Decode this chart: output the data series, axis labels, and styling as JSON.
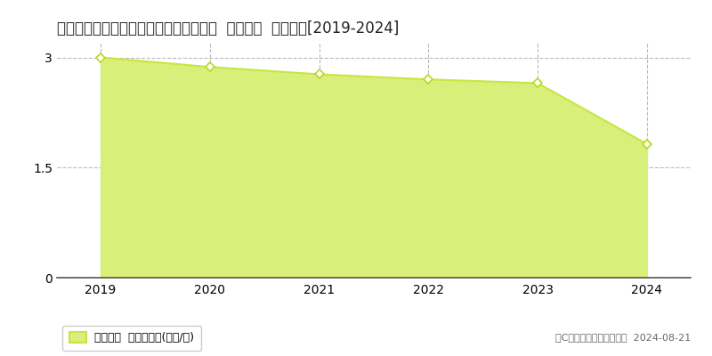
{
  "title": "兵庫県赤穂郡上郡町別名字北條６９番３  地価公示  地価推移[2019-2024]",
  "years": [
    2019,
    2020,
    2021,
    2022,
    2023,
    2024
  ],
  "values": [
    3.0,
    2.87,
    2.77,
    2.7,
    2.65,
    1.82
  ],
  "ylim": [
    0,
    3.2
  ],
  "yticks": [
    0,
    1.5,
    3
  ],
  "line_color": "#c8e640",
  "fill_color": "#d8ef7a",
  "marker_face_color": "#ffffff",
  "marker_edge_color": "#b8d820",
  "grid_color": "#aaaaaa",
  "background_color": "#ffffff",
  "legend_label": "地価公示  平均坪単価(万円/坪)",
  "copyright_text": "（C）土地価格ドットコム  2024-08-21",
  "title_fontsize": 12,
  "tick_fontsize": 10,
  "legend_fontsize": 9,
  "copyright_fontsize": 8
}
